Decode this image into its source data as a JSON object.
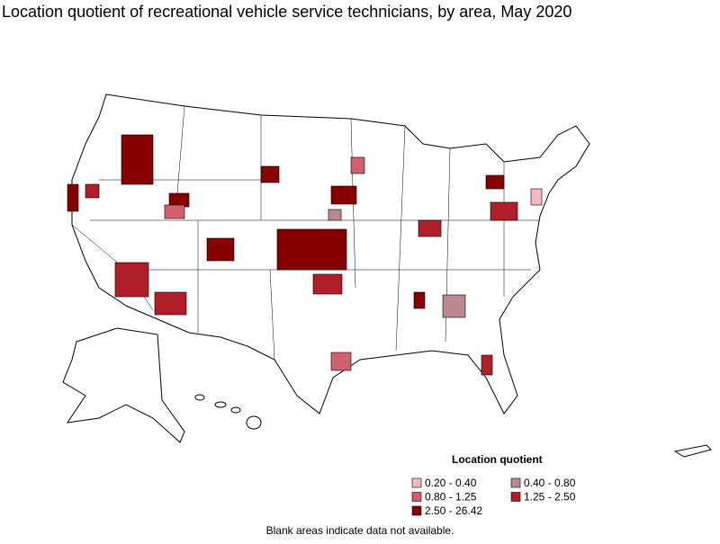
{
  "title": "Location quotient of recreational vehicle service technicians, by area, May 2020",
  "legend": {
    "title": "Location quotient",
    "items": [
      {
        "label": "0.20 - 0.40",
        "color": "#f5b8c0"
      },
      {
        "label": "0.40 - 0.80",
        "color": "#b88a90"
      },
      {
        "label": "0.80 - 1.25",
        "color": "#d0606b"
      },
      {
        "label": "1.25 - 2.50",
        "color": "#b01e2a"
      },
      {
        "label": "2.50 - 26.42",
        "color": "#850000"
      }
    ]
  },
  "footnote": "Blank areas indicate data not available."
}
